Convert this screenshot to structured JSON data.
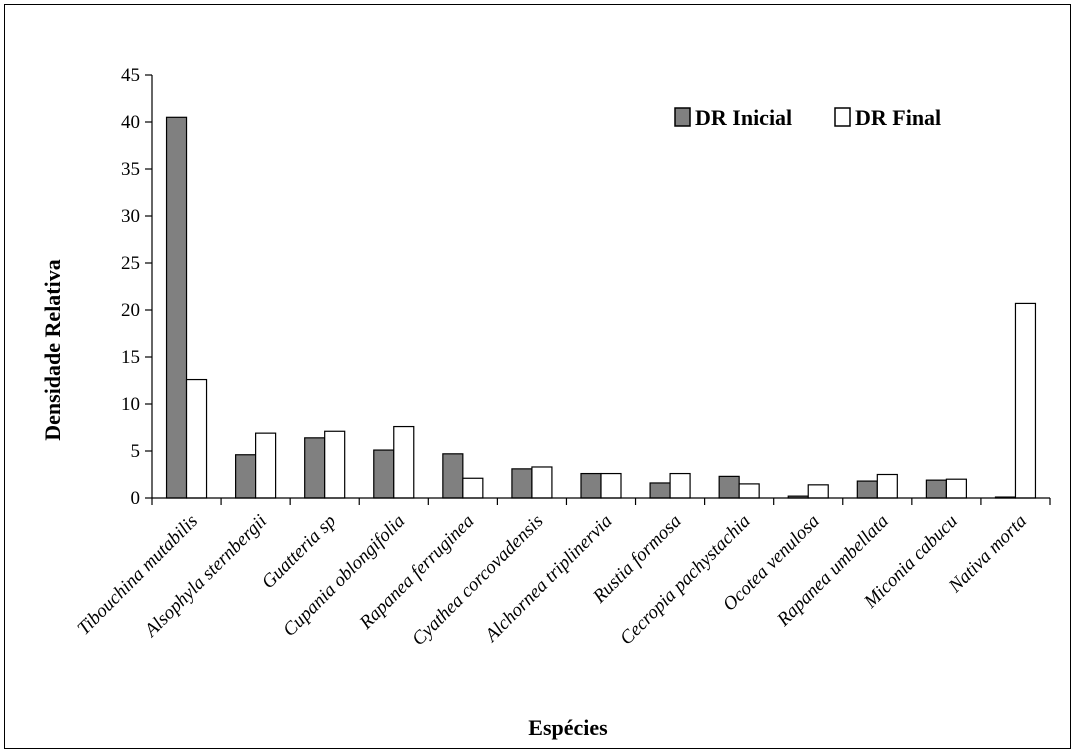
{
  "chart_data": {
    "type": "bar",
    "title": "",
    "xlabel": "Espécies",
    "ylabel": "Densidade Relativa",
    "ylim": [
      0,
      45
    ],
    "yticks": [
      0,
      5,
      10,
      15,
      20,
      25,
      30,
      35,
      40,
      45
    ],
    "grid": false,
    "legend_position": "top-right",
    "categories": [
      "Tibouchina mutabilis",
      "Alsophyla sternbergii",
      "Guatteria sp",
      "Cupania oblongifolia",
      "Rapanea ferruginea",
      "Cyathea corcovadensis",
      "Alchornea triplinervia",
      "Rustia formosa",
      "Cecropia pachystachia",
      "Ocotea venulosa",
      "Rapanea umbellata",
      "Miconia cabucu",
      "Nativa morta"
    ],
    "series": [
      {
        "name": "DR Inicial",
        "color": "#808080",
        "values": [
          40.5,
          4.6,
          6.4,
          5.1,
          4.7,
          3.1,
          2.6,
          1.6,
          2.3,
          0.2,
          1.8,
          1.9,
          0.1
        ]
      },
      {
        "name": "DR Final",
        "color": "#ffffff",
        "values": [
          12.6,
          6.9,
          7.1,
          7.6,
          2.1,
          3.3,
          2.6,
          2.6,
          1.5,
          1.4,
          2.5,
          2.0,
          20.7
        ]
      }
    ]
  }
}
